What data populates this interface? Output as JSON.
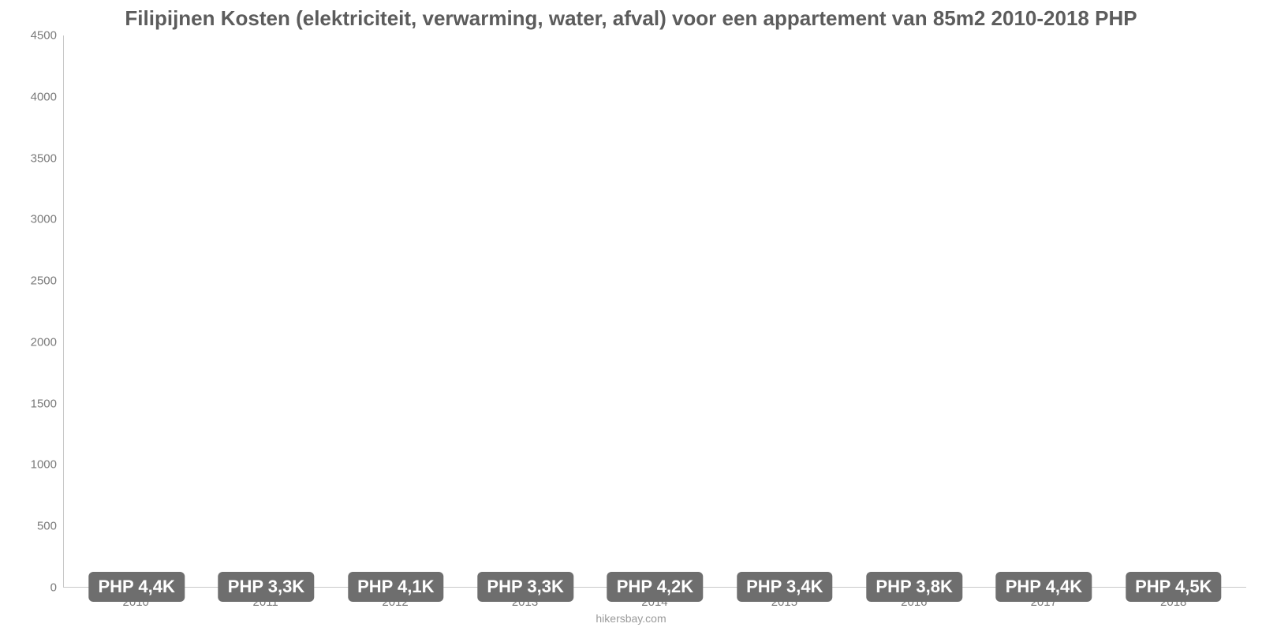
{
  "chart": {
    "type": "bar",
    "title": "Filipijnen Kosten (elektriciteit, verwarming, water, afval) voor een appartement van 85m2 2010-2018 PHP",
    "title_fontsize": 26,
    "title_color": "#5c5c5c",
    "source": "hikersbay.com",
    "background_color": "#ffffff",
    "axis_color": "#c8c8c8",
    "tick_color": "#7a7a7a",
    "tick_fontsize": 15,
    "categories": [
      "2010",
      "2011",
      "2012",
      "2013",
      "2014",
      "2015",
      "2016",
      "2017",
      "2018"
    ],
    "values": [
      4430,
      3320,
      4090,
      3300,
      4180,
      3390,
      3850,
      4380,
      4460
    ],
    "value_labels": [
      "PHP 4,4K",
      "PHP 3,3K",
      "PHP 4,1K",
      "PHP 3,3K",
      "PHP 4,2K",
      "PHP 3,4K",
      "PHP 3,8K",
      "PHP 4,4K",
      "PHP 4,5K"
    ],
    "bar_colors": [
      "#e74c3c",
      "#2ecc40",
      "#e6a82e",
      "#2ecc40",
      "#e6a82e",
      "#2ecc40",
      "#d4d435",
      "#e74c3c",
      "#d9362b"
    ],
    "ylim": [
      0,
      4500
    ],
    "ytick_step": 500,
    "yticks": [
      "0",
      "500",
      "1000",
      "1500",
      "2000",
      "2500",
      "3000",
      "3500",
      "4000",
      "4500"
    ],
    "bar_width_ratio": 0.82,
    "value_label_bg": "#6e6e6e",
    "value_label_color": "#ffffff",
    "value_label_fontsize": 22,
    "label_y_ratio": 0.5
  }
}
